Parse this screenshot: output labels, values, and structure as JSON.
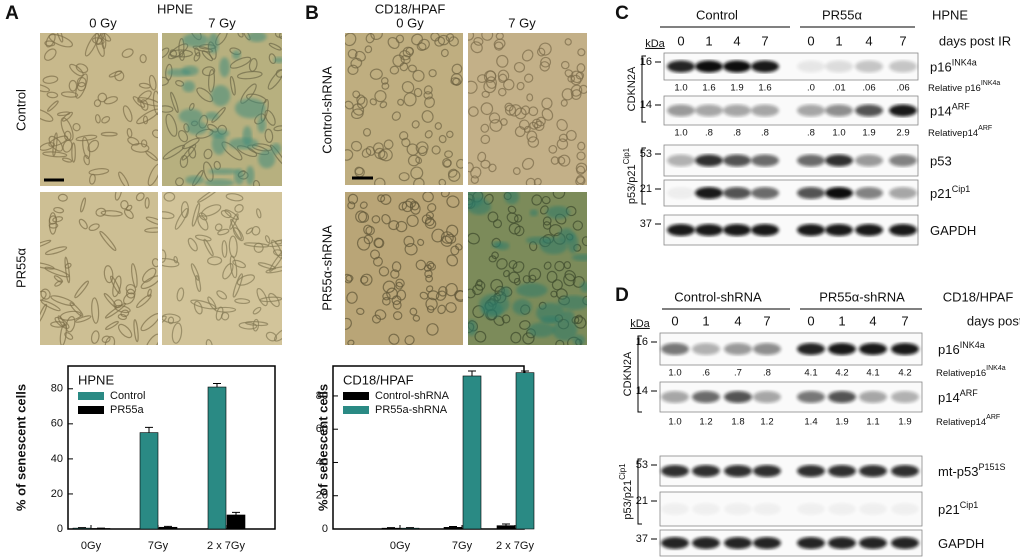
{
  "panel_a": {
    "label": "A",
    "title": "HPNE",
    "columns": [
      "0 Gy",
      "7 Gy"
    ],
    "rows": [
      "Control",
      "PR55α"
    ]
  },
  "panel_b": {
    "label": "B",
    "title": "CD18/HPAF",
    "columns": [
      "0 Gy",
      "7 Gy"
    ],
    "rows": [
      "Control-shRNA",
      "PR55α-shRNA"
    ]
  },
  "chart_data": [
    {
      "type": "bar",
      "legend_title": "HPNE",
      "ylabel": "% of senescent cells",
      "legend": "upper left",
      "categories": [
        "0Gy",
        "7Gy",
        "2 x 7Gy"
      ],
      "ylim": [
        0,
        93
      ],
      "yticks": [
        0,
        20,
        40,
        60,
        80
      ],
      "series": [
        {
          "name": "Control",
          "color": "#2a8a84",
          "values": [
            0.5,
            55,
            81
          ],
          "errors": [
            0.3,
            3,
            2
          ]
        },
        {
          "name": "PR55a",
          "color": "#000000",
          "values": [
            0.3,
            1,
            8
          ],
          "errors": [
            0.2,
            0.5,
            1.5
          ]
        }
      ]
    },
    {
      "type": "bar",
      "legend_title": "CD18/HPAF",
      "ylabel": "% of senescent cells",
      "legend": "upper left",
      "categories": [
        "0Gy",
        "7Gy",
        "2 x 7Gy"
      ],
      "ylim": [
        0,
        98
      ],
      "yticks": [
        0,
        20,
        40,
        60,
        80
      ],
      "series": [
        {
          "name": "Control-shRNA",
          "color": "#000000",
          "values": [
            0.5,
            1,
            2
          ],
          "errors": [
            0.3,
            0.5,
            1
          ]
        },
        {
          "name": "PR55a-shRNA",
          "color": "#2a8a84",
          "values": [
            0.5,
            92,
            94
          ],
          "errors": [
            0.3,
            3,
            1
          ]
        }
      ]
    }
  ],
  "panel_c": {
    "label": "C",
    "groups": [
      "Control",
      "PR55α"
    ],
    "cell_line": "HPNE",
    "unit": "kDa",
    "lanes": [
      0,
      1,
      4,
      7,
      0,
      1,
      4,
      7
    ],
    "lanes_title": "days post IR",
    "brackets": [
      {
        "base": "CDKN2A"
      },
      {
        "base": "p53/p21",
        "sup": "Cip1"
      }
    ],
    "blots": [
      {
        "marker": 16,
        "label": {
          "base": "p16",
          "sup": "INK4a"
        },
        "relative_label": {
          "base": "Relative p16",
          "sup": "INK4a"
        },
        "relative": [
          "1.0",
          "1.6",
          "1.9",
          "1.6",
          ".0",
          ".01",
          ".06",
          ".06"
        ]
      },
      {
        "marker": 14,
        "label": {
          "base": "p14",
          "sup": "ARF"
        },
        "relative_label": {
          "base": "Relativep14",
          "sup": "ARF"
        },
        "relative": [
          "1.0",
          ".8",
          ".8",
          ".8",
          ".8",
          "1.0",
          "1.9",
          "2.9"
        ]
      },
      {
        "marker": 53,
        "label": {
          "base": "p53"
        }
      },
      {
        "marker": 21,
        "label": {
          "base": "p21",
          "sup": "Cip1"
        }
      },
      {
        "marker": 37,
        "label": {
          "base": "GAPDH"
        }
      }
    ]
  },
  "panel_d": {
    "label": "D",
    "groups": [
      "Control-shRNA",
      "PR55α-shRNA"
    ],
    "cell_line": "CD18/HPAF",
    "unit": "kDa",
    "lanes": [
      0,
      1,
      4,
      7,
      0,
      1,
      4,
      7
    ],
    "lanes_title": "days post IR",
    "brackets": [
      {
        "base": "CDKN2A"
      },
      {
        "base": "p53/p21",
        "sup": "Cip1"
      }
    ],
    "blots": [
      {
        "marker": 16,
        "label": {
          "base": "p16",
          "sup": "INK4a"
        },
        "relative_label": {
          "base": "Relativep16",
          "sup": "INK4a"
        },
        "relative": [
          "1.0",
          ".6",
          ".7",
          ".8",
          "4.1",
          "4.2",
          "4.1",
          "4.2"
        ]
      },
      {
        "marker": 14,
        "label": {
          "base": "p14",
          "sup": "ARF"
        },
        "relative_label": {
          "base": "Relativep14",
          "sup": "ARF"
        },
        "relative": [
          "1.0",
          "1.2",
          "1.8",
          "1.2",
          "1.4",
          "1.9",
          "1.1",
          "1.9"
        ]
      },
      {
        "marker": 53,
        "label": {
          "base": "mt-p53",
          "sup": "P151S"
        }
      },
      {
        "marker": 21,
        "label": {
          "base": "p21",
          "sup": "Cip1"
        }
      },
      {
        "marker": 37,
        "label": {
          "base": "GAPDH"
        }
      }
    ]
  }
}
